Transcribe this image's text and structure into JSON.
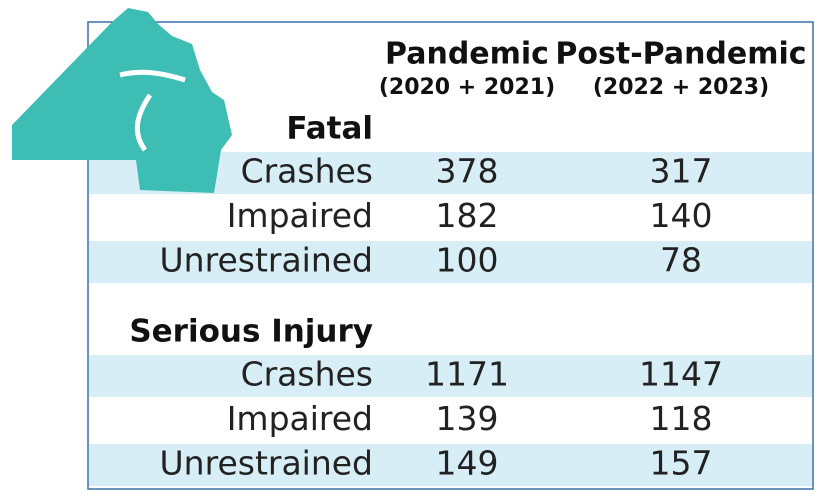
{
  "table": {
    "columns": [
      {
        "title": "Pandemic",
        "subtitle": "(2020 + 2021)"
      },
      {
        "title": "Post-Pandemic",
        "subtitle": "(2022 + 2023)"
      }
    ],
    "sections": [
      {
        "title": "Fatal",
        "rows": [
          {
            "label": "Crashes",
            "values": [
              378,
              317
            ]
          },
          {
            "label": "Impaired",
            "values": [
              182,
              140
            ]
          },
          {
            "label": "Unrestrained",
            "values": [
              100,
              78
            ]
          }
        ]
      },
      {
        "title": "Serious Injury",
        "rows": [
          {
            "label": "Crashes",
            "values": [
              1171,
              1147
            ]
          },
          {
            "label": "Impaired",
            "values": [
              139,
              118
            ]
          },
          {
            "label": "Unrestrained",
            "values": [
              149,
              157
            ]
          }
        ]
      }
    ]
  }
}
